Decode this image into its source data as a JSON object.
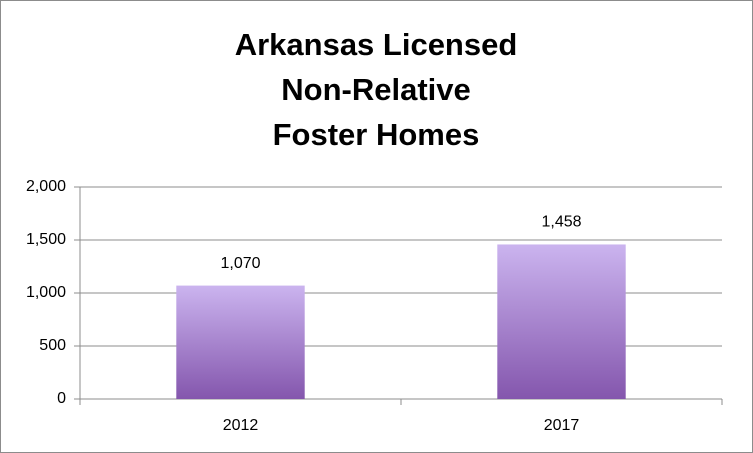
{
  "chart_data": {
    "type": "bar",
    "title": [
      "Arkansas Licensed",
      "Non-Relative",
      "Foster Homes"
    ],
    "categories": [
      "2012",
      "2017"
    ],
    "values": [
      1070,
      1458
    ],
    "value_labels": [
      "1,070",
      "1,458"
    ],
    "color_gradient": [
      "#cbb4ef",
      "#8456ad"
    ],
    "ylim": [
      0,
      2000
    ],
    "yticks": [
      0,
      500,
      {
        "value": 1000,
        "label": "1,000"
      },
      {
        "value": 1500,
        "label": "1,500"
      },
      {
        "value": 2000,
        "label": "2,000"
      }
    ],
    "grid": true
  }
}
